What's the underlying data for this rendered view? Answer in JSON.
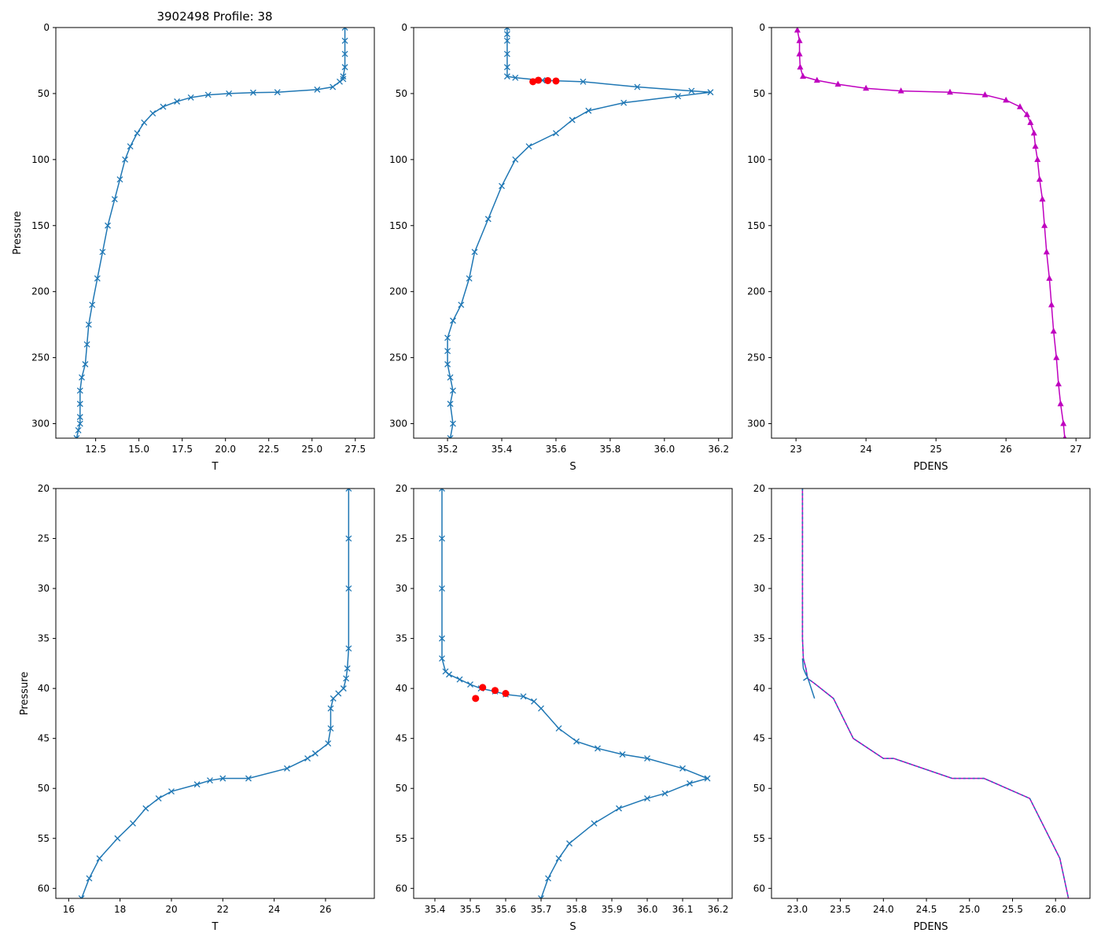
{
  "figure_title": "3902498 Profile: 38",
  "colors": {
    "profile": "#1f77b4",
    "flag": "#ff0000",
    "density": "#bf00bf"
  },
  "chart_data": [
    {
      "id": "T_full",
      "type": "line",
      "xlabel": "T",
      "ylabel": "Pressure",
      "title": "3902498 Profile: 38",
      "xlim": [
        10.2,
        28.6
      ],
      "ylim": [
        311,
        0
      ],
      "xticks": [
        12.5,
        15.0,
        17.5,
        20.0,
        22.5,
        25.0,
        27.5
      ],
      "yticks": [
        0,
        50,
        100,
        150,
        200,
        250,
        300
      ],
      "tick_decimals": 1,
      "marker": "x",
      "color": "#1f77b4",
      "series": [
        {
          "name": "T",
          "x": [
            26.9,
            26.9,
            26.9,
            26.9,
            26.8,
            26.8,
            26.6,
            26.2,
            25.3,
            23.0,
            21.6,
            20.2,
            19.0,
            18.0,
            17.2,
            16.4,
            15.8,
            15.3,
            14.9,
            14.5,
            14.2,
            13.9,
            13.6,
            13.2,
            12.9,
            12.6,
            12.3,
            12.1,
            12.0,
            11.9,
            11.7,
            11.6,
            11.6,
            11.6,
            11.6,
            11.5,
            11.4
          ],
          "y": [
            0,
            10,
            20,
            30,
            37,
            39,
            41,
            45,
            47,
            49,
            49.3,
            50,
            51,
            53,
            56,
            60,
            65,
            72,
            80,
            90,
            100,
            115,
            130,
            150,
            170,
            190,
            210,
            225,
            240,
            255,
            265,
            275,
            285,
            295,
            300,
            305,
            311
          ]
        }
      ]
    },
    {
      "id": "S_full",
      "type": "line",
      "xlabel": "S",
      "ylabel": "",
      "title": "",
      "xlim": [
        35.075,
        36.25
      ],
      "ylim": [
        311,
        0
      ],
      "xticks": [
        35.2,
        35.4,
        35.6,
        35.8,
        36.0,
        36.2
      ],
      "yticks": [
        0,
        50,
        100,
        150,
        200,
        250,
        300
      ],
      "tick_decimals": 1,
      "marker": "x",
      "color": "#1f77b4",
      "series": [
        {
          "name": "S",
          "x": [
            35.42,
            35.42,
            35.42,
            35.42,
            35.42,
            35.42,
            35.45,
            35.55,
            35.7,
            35.9,
            36.1,
            36.17,
            36.05,
            35.85,
            35.72,
            35.66,
            35.6,
            35.5,
            35.45,
            35.4,
            35.35,
            35.3,
            35.28,
            35.25,
            35.22,
            35.2,
            35.2,
            35.2,
            35.21,
            35.22,
            35.21,
            35.22,
            35.21
          ],
          "y": [
            0,
            5,
            10,
            20,
            30,
            37,
            38,
            40,
            41,
            45,
            48,
            49,
            52,
            57,
            63,
            70,
            80,
            90,
            100,
            120,
            145,
            170,
            190,
            210,
            222,
            235,
            245,
            255,
            265,
            275,
            285,
            300,
            311
          ]
        }
      ],
      "flags": {
        "x": [
          35.515,
          35.535,
          35.57,
          35.6
        ],
        "y": [
          41,
          39.9,
          40.2,
          40.5
        ]
      }
    },
    {
      "id": "PDENS_full",
      "type": "line",
      "xlabel": "PDENS",
      "ylabel": "",
      "title": "",
      "xlim": [
        22.65,
        27.2
      ],
      "ylim": [
        311,
        0
      ],
      "xticks": [
        23,
        24,
        25,
        26,
        27
      ],
      "yticks": [
        0,
        50,
        100,
        150,
        200,
        250,
        300
      ],
      "tick_decimals": 0,
      "marker": "^",
      "color": "#bf00bf",
      "series": [
        {
          "name": "PDENS",
          "x": [
            23.02,
            23.05,
            23.05,
            23.06,
            23.1,
            23.3,
            23.6,
            24.0,
            24.5,
            25.2,
            25.7,
            26.0,
            26.2,
            26.3,
            26.35,
            26.4,
            26.42,
            26.45,
            26.48,
            26.52,
            26.55,
            26.58,
            26.62,
            26.65,
            26.68,
            26.72,
            26.75,
            26.78,
            26.82,
            26.84
          ],
          "y": [
            2,
            10,
            20,
            30,
            37,
            40,
            43,
            46,
            48,
            49,
            51,
            55,
            60,
            66,
            72,
            80,
            90,
            100,
            115,
            130,
            150,
            170,
            190,
            210,
            230,
            250,
            270,
            285,
            300,
            311
          ]
        }
      ]
    },
    {
      "id": "T_zoom",
      "type": "line",
      "xlabel": "T",
      "ylabel": "Pressure",
      "title": "",
      "xlim": [
        15.5,
        27.9
      ],
      "ylim": [
        61,
        20
      ],
      "xticks": [
        16,
        18,
        20,
        22,
        24,
        26
      ],
      "yticks": [
        20,
        25,
        30,
        35,
        40,
        45,
        50,
        55,
        60
      ],
      "tick_decimals": 0,
      "marker": "x",
      "color": "#1f77b4",
      "series": [
        {
          "name": "T",
          "x": [
            26.9,
            26.9,
            26.9,
            26.9,
            26.85,
            26.8,
            26.7,
            26.5,
            26.3,
            26.2,
            26.2,
            26.1,
            25.6,
            25.3,
            24.5,
            23.0,
            22.0,
            21.5,
            21.0,
            20.0,
            19.5,
            19.0,
            18.5,
            17.9,
            17.2,
            16.8,
            16.5
          ],
          "y": [
            20,
            25,
            30,
            36,
            38,
            39,
            40,
            40.5,
            41,
            42,
            44,
            45.5,
            46.5,
            47,
            48,
            49,
            49,
            49.2,
            49.6,
            50.3,
            51,
            52,
            53.5,
            55,
            57,
            59,
            61
          ]
        }
      ]
    },
    {
      "id": "S_zoom",
      "type": "line",
      "xlabel": "S",
      "ylabel": "",
      "title": "",
      "xlim": [
        35.34,
        36.24
      ],
      "ylim": [
        61,
        20
      ],
      "xticks": [
        35.4,
        35.5,
        35.6,
        35.7,
        35.8,
        35.9,
        36.0,
        36.1,
        36.2
      ],
      "yticks": [
        20,
        25,
        30,
        35,
        40,
        45,
        50,
        55,
        60
      ],
      "tick_decimals": 1,
      "marker": "x",
      "color": "#1f77b4",
      "series": [
        {
          "name": "S",
          "x": [
            35.42,
            35.42,
            35.42,
            35.42,
            35.42,
            35.43,
            35.44,
            35.47,
            35.5,
            35.53,
            35.57,
            35.6,
            35.65,
            35.68,
            35.7,
            35.75,
            35.8,
            35.86,
            35.93,
            36.0,
            36.1,
            36.17,
            36.12,
            36.05,
            36.0,
            35.92,
            35.85,
            35.78,
            35.75,
            35.72,
            35.7
          ],
          "y": [
            20,
            25,
            30,
            35,
            37,
            38.3,
            38.6,
            39.1,
            39.6,
            40.0,
            40.3,
            40.6,
            40.8,
            41.3,
            42,
            44,
            45.3,
            46,
            46.6,
            47,
            48,
            49,
            49.5,
            50.5,
            51,
            52,
            53.5,
            55.5,
            57,
            59,
            61
          ]
        }
      ],
      "flags": {
        "x": [
          35.515,
          35.535,
          35.57,
          35.6
        ],
        "y": [
          41,
          39.9,
          40.2,
          40.5
        ]
      }
    },
    {
      "id": "PDENS_zoom",
      "type": "line",
      "xlabel": "PDENS",
      "ylabel": "",
      "title": "",
      "xlim": [
        22.7,
        26.4
      ],
      "ylim": [
        61,
        20
      ],
      "xticks": [
        23.0,
        23.5,
        24.0,
        24.5,
        25.0,
        25.5,
        26.0
      ],
      "yticks": [
        20,
        25,
        30,
        35,
        40,
        45,
        50,
        55,
        60
      ],
      "tick_decimals": 1,
      "marker": "none",
      "color": "#bf00bf",
      "series": [
        {
          "name": "PDENS",
          "x": [
            23.06,
            23.06,
            23.06,
            23.06,
            23.07,
            23.1,
            23.12,
            23.2,
            23.42,
            23.65,
            24.0,
            24.12,
            24.8,
            25.17,
            25.7,
            26.05,
            26.15
          ],
          "y": [
            20,
            25,
            30,
            35,
            37,
            38,
            39,
            39.5,
            41,
            45,
            47,
            47,
            49,
            49,
            51,
            57,
            61
          ]
        }
      ],
      "aux_x": [
        23.06,
        23.07,
        23.1,
        23.12,
        23.2,
        23.12,
        23.07
      ],
      "aux_y": [
        37,
        38,
        38.6,
        38.9,
        41,
        38.9,
        39.2
      ]
    }
  ]
}
